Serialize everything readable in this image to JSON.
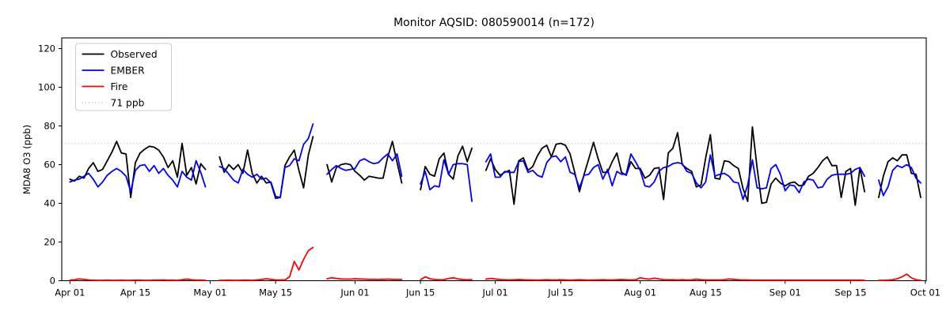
{
  "title": "Monitor AQSID: 080590014 (n=172)",
  "chart_data": {
    "type": "line",
    "title": "Monitor AQSID: 080590014 (n=172)",
    "xlabel": "",
    "ylabel": "MDA8 O3 (ppb)",
    "ylim": [
      0,
      125
    ],
    "yticks": [
      0,
      20,
      40,
      60,
      80,
      100,
      120
    ],
    "grid": false,
    "legend_position": "upper-left",
    "x_axis": {
      "start_label": "Apr 01",
      "end_label": "Oct 01",
      "days_total": 183,
      "ticks": [
        {
          "day": 0,
          "label": "Apr 01"
        },
        {
          "day": 14,
          "label": "Apr 15"
        },
        {
          "day": 30,
          "label": "May 01"
        },
        {
          "day": 44,
          "label": "May 15"
        },
        {
          "day": 61,
          "label": "Jun 01"
        },
        {
          "day": 75,
          "label": "Jun 15"
        },
        {
          "day": 91,
          "label": "Jul 01"
        },
        {
          "day": 105,
          "label": "Jul 15"
        },
        {
          "day": 122,
          "label": "Aug 01"
        },
        {
          "day": 136,
          "label": "Aug 15"
        },
        {
          "day": 153,
          "label": "Sep 01"
        },
        {
          "day": 167,
          "label": "Sep 15"
        },
        {
          "day": 183,
          "label": "Oct 01"
        }
      ]
    },
    "reference_line": {
      "value": 71,
      "label": "71 ppb",
      "color": "#d3d3d3",
      "style": "dotted"
    },
    "series": [
      {
        "name": "Observed",
        "color": "#000000",
        "style": "solid",
        "values": [
          52.5,
          51.5,
          54,
          53,
          58,
          61,
          56.5,
          57.5,
          62,
          66.5,
          72,
          66,
          65.5,
          43,
          61,
          66,
          68,
          69.5,
          69,
          67.5,
          64,
          58.5,
          62,
          53.5,
          71,
          54.5,
          58.5,
          50,
          60.5,
          57.5,
          null,
          null,
          64,
          56,
          60,
          57.5,
          60,
          55.5,
          67.5,
          55.5,
          50.5,
          54,
          50.5,
          51,
          43.5,
          43,
          59.5,
          64,
          67.5,
          57,
          48,
          65,
          74.5,
          null,
          null,
          60,
          51,
          58.5,
          60,
          60.5,
          60,
          56.5,
          54.5,
          52,
          54,
          53.5,
          53,
          53,
          64,
          72,
          61,
          50.5,
          null,
          null,
          null,
          47,
          59,
          55,
          54,
          63,
          66,
          55,
          52.5,
          64.5,
          69.5,
          61.5,
          68.5,
          null,
          null,
          57,
          63,
          57.5,
          54.5,
          56,
          57,
          39.5,
          62,
          63.5,
          57,
          59,
          64.5,
          68.5,
          70,
          64,
          70.5,
          71,
          70,
          65.5,
          56,
          46,
          55,
          63,
          71.5,
          63,
          56,
          56,
          61.5,
          66,
          56,
          54.5,
          61.5,
          58,
          58,
          53,
          54.5,
          58,
          58.5,
          42,
          66,
          68.5,
          76.5,
          60,
          58,
          56.5,
          48.5,
          49.5,
          63.5,
          75.5,
          53,
          52.5,
          62,
          61.5,
          59.5,
          58,
          47.5,
          41,
          79.5,
          58.5,
          40,
          40.5,
          50,
          53,
          50.5,
          49,
          50.5,
          51,
          49,
          49.5,
          54,
          55.5,
          58.5,
          62,
          64,
          59.5,
          59.5,
          43,
          56.5,
          58,
          39,
          58.5,
          46,
          null,
          null,
          43,
          54,
          61.5,
          63.5,
          62,
          65,
          65,
          55.5,
          55,
          43
        ]
      },
      {
        "name": "EMBER",
        "color": "#0000ff",
        "style": "solid",
        "values": [
          51,
          52,
          52.5,
          54,
          55.5,
          52.5,
          48.5,
          51,
          54.5,
          56.5,
          58,
          56.5,
          54,
          46,
          57,
          59.5,
          60,
          56.5,
          59.5,
          55.5,
          58,
          54.5,
          52,
          48.5,
          56.5,
          53.5,
          52,
          62,
          56,
          48.5,
          null,
          null,
          59,
          58,
          55,
          52,
          50.5,
          57.5,
          55,
          53.5,
          55,
          52.5,
          53,
          50.5,
          42.5,
          43,
          58.5,
          59.5,
          63,
          62,
          70.5,
          73.5,
          81,
          null,
          null,
          55,
          57.5,
          59.5,
          58,
          57,
          57.5,
          58,
          62,
          63,
          61.5,
          60.5,
          61,
          63.5,
          65.5,
          62,
          65.5,
          54,
          null,
          null,
          null,
          50,
          56.5,
          47,
          49,
          48.5,
          62.5,
          55,
          60,
          60.5,
          60.5,
          60,
          41,
          null,
          null,
          61.5,
          65.5,
          53.5,
          53.5,
          56.5,
          56,
          56,
          61.5,
          62,
          56,
          57,
          54.5,
          53.5,
          61,
          64,
          64.5,
          61.5,
          64,
          56,
          55,
          48,
          54.5,
          55,
          58.5,
          60,
          52.5,
          57.5,
          49,
          56.5,
          55,
          55,
          65.5,
          61.5,
          57,
          49,
          48.5,
          51,
          56.5,
          58.5,
          59,
          60.5,
          61,
          60.5,
          56.5,
          55.5,
          50.5,
          48,
          51,
          65,
          54,
          55,
          55.5,
          54,
          51,
          50.5,
          42,
          49.5,
          62.5,
          48,
          47.5,
          48,
          58,
          60,
          55,
          46.5,
          49.5,
          49,
          45.5,
          51,
          52.5,
          52,
          48,
          48.5,
          52.5,
          54.5,
          55,
          55,
          55,
          55.5,
          57.5,
          58.5,
          54,
          null,
          null,
          52,
          44,
          48.5,
          57,
          59.5,
          58.5,
          60,
          58.5,
          53,
          50.5
        ]
      },
      {
        "name": "Fire",
        "color": "#ff0000",
        "style": "solid",
        "values": [
          0.3,
          0.5,
          0.9,
          0.7,
          0.4,
          0.3,
          0.2,
          0.2,
          0.3,
          0.2,
          0.2,
          0.3,
          0.2,
          0.2,
          0.3,
          0.3,
          0.2,
          0.2,
          0.3,
          0.3,
          0.4,
          0.3,
          0.3,
          0.2,
          0.5,
          0.8,
          0.5,
          0.3,
          0.3,
          0.2,
          null,
          null,
          0.2,
          0.2,
          0.3,
          0.2,
          0.2,
          0.3,
          0.3,
          0.2,
          0.4,
          0.6,
          1.0,
          0.7,
          0.4,
          0.4,
          0.4,
          2.0,
          10,
          5.5,
          11,
          15.5,
          17.2,
          null,
          null,
          1.0,
          1.5,
          1.2,
          0.9,
          0.8,
          0.8,
          1.0,
          0.9,
          0.8,
          0.7,
          0.7,
          0.6,
          0.7,
          0.8,
          0.7,
          0.6,
          0.6,
          null,
          null,
          null,
          0.5,
          2.0,
          1.0,
          0.6,
          0.5,
          0.5,
          1.2,
          1.5,
          0.9,
          0.6,
          0.5,
          0.5,
          null,
          null,
          0.8,
          1.2,
          0.9,
          0.6,
          0.5,
          0.4,
          0.5,
          0.6,
          0.5,
          0.4,
          0.4,
          0.3,
          0.4,
          0.5,
          0.4,
          0.4,
          0.5,
          0.4,
          0.3,
          0.4,
          0.5,
          0.4,
          0.3,
          0.4,
          0.4,
          0.5,
          0.4,
          0.4,
          0.5,
          0.6,
          0.5,
          0.4,
          0.5,
          1.5,
          1.0,
          0.8,
          1.3,
          0.9,
          0.5,
          0.5,
          0.5,
          0.4,
          0.5,
          0.4,
          0.4,
          0.8,
          0.5,
          0.4,
          0.4,
          0.4,
          0.4,
          0.5,
          0.9,
          0.7,
          0.5,
          0.4,
          0.4,
          0.3,
          0.3,
          0.3,
          0.3,
          0.3,
          0.3,
          0.3,
          0.3,
          0.3,
          0.3,
          0.3,
          0.3,
          0.3,
          0.3,
          0.3,
          0.3,
          0.3,
          0.3,
          0.3,
          0.3,
          0.3,
          0.3,
          0.3,
          0.3,
          0.2,
          null,
          null,
          0.2,
          0.2,
          0.3,
          0.5,
          1.0,
          2.0,
          3.4,
          1.5,
          0.5,
          0.2
        ]
      }
    ],
    "legend_entries": [
      "Observed",
      "EMBER",
      "Fire",
      "71 ppb"
    ]
  }
}
